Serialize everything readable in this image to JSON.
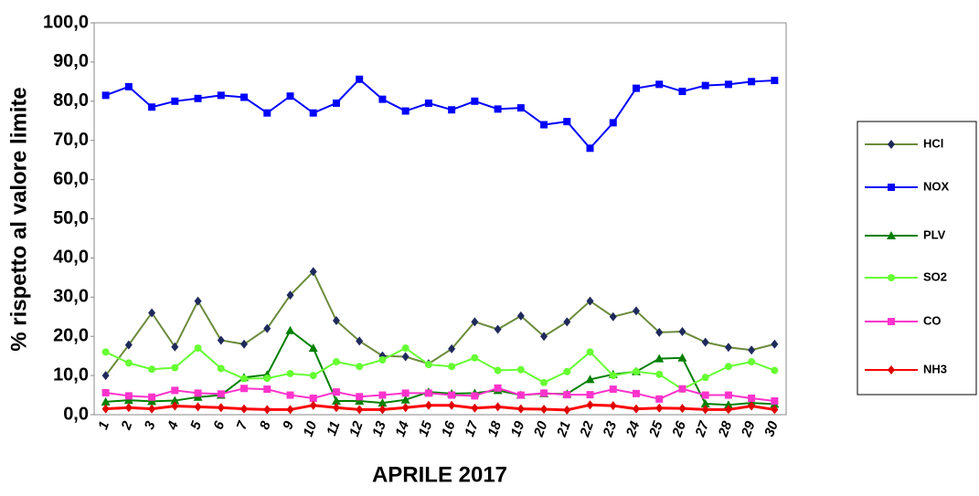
{
  "chart_data": {
    "type": "line",
    "y_label": "% rispetto al valore limite",
    "x_label": "APRILE 2017",
    "categories": [
      "1",
      "2",
      "3",
      "4",
      "5",
      "6",
      "7",
      "8",
      "9",
      "10",
      "11",
      "12",
      "13",
      "14",
      "15",
      "16",
      "17",
      "18",
      "19",
      "20",
      "21",
      "22",
      "23",
      "24",
      "25",
      "26",
      "27",
      "28",
      "29",
      "30"
    ],
    "ylim": [
      0,
      100
    ],
    "yticks": [
      {
        "value": 0,
        "label": "0,0"
      },
      {
        "value": 10,
        "label": "10,0"
      },
      {
        "value": 20,
        "label": "20,0"
      },
      {
        "value": 30,
        "label": "30,0"
      },
      {
        "value": 40,
        "label": "40,0"
      },
      {
        "value": 50,
        "label": "50,0"
      },
      {
        "value": 60,
        "label": "60,0"
      },
      {
        "value": 70,
        "label": "70,0"
      },
      {
        "value": 80,
        "label": "80,0"
      },
      {
        "value": 90,
        "label": "90,0"
      },
      {
        "value": 100,
        "label": "100,0"
      }
    ],
    "grid": false,
    "legend": "right",
    "series": [
      {
        "name": "HCl",
        "color": "#6b8b3c",
        "marker": "diamond",
        "marker_color": "#1f2a5c",
        "values": [
          10,
          17.8,
          26,
          17.3,
          29,
          19,
          18,
          22,
          30.5,
          36.5,
          24,
          18.8,
          15,
          14.8,
          13,
          16.8,
          23.7,
          21.8,
          25.2,
          20,
          23.7,
          29,
          25,
          26.5,
          21,
          21.2,
          18.5,
          17.2,
          16.5,
          18
        ]
      },
      {
        "name": "NOX",
        "color": "#0000ff",
        "marker": "square",
        "marker_color": "#0000ff",
        "values": [
          81.5,
          83.7,
          78.5,
          80,
          80.7,
          81.5,
          81,
          77,
          81.3,
          77,
          79.5,
          85.6,
          80.5,
          77.5,
          79.5,
          77.8,
          80,
          78,
          78.3,
          74,
          74.8,
          68,
          74.5,
          83.3,
          84.3,
          82.5,
          84,
          84.3,
          85,
          85.3
        ]
      },
      {
        "name": "PLV",
        "color": "#008000",
        "marker": "triangle",
        "marker_color": "#008000",
        "values": [
          3.3,
          3.7,
          3.4,
          3.6,
          4.5,
          5,
          9.5,
          10.2,
          21.5,
          17,
          3.5,
          3.5,
          3,
          3.8,
          5.8,
          5.4,
          5.5,
          6.2,
          5,
          5.4,
          5.3,
          9,
          10.3,
          11,
          14.3,
          14.5,
          2.8,
          2.5,
          3,
          2.7
        ]
      },
      {
        "name": "SO2",
        "color": "#66ff33",
        "marker": "circle",
        "marker_color": "#66ff33",
        "values": [
          16,
          13.2,
          11.6,
          12,
          17,
          11.8,
          9.2,
          9.3,
          10.5,
          10,
          13.5,
          12.3,
          14,
          17,
          12.8,
          12.3,
          14.5,
          11.3,
          11.5,
          8.2,
          11,
          16,
          10,
          11,
          10.3,
          6.5,
          9.5,
          12.3,
          13.5,
          11.3
        ]
      },
      {
        "name": "CO",
        "color": "#ff33cc",
        "marker": "square",
        "marker_color": "#ff33cc",
        "values": [
          5.6,
          4.8,
          4.5,
          6.2,
          5.5,
          5.3,
          6.7,
          6.5,
          5,
          4.2,
          5.8,
          4.6,
          5,
          5.5,
          5.5,
          5,
          4.8,
          6.8,
          5,
          5.5,
          5.1,
          5.1,
          6.5,
          5.4,
          4,
          6.6,
          5,
          5,
          4.2,
          3.5
        ]
      },
      {
        "name": "NH3",
        "color": "#ff0000",
        "marker": "diamond",
        "marker_color": "#e00000",
        "values": [
          1.5,
          1.8,
          1.5,
          2.2,
          2,
          1.8,
          1.5,
          1.3,
          1.3,
          2.4,
          1.8,
          1.3,
          1.3,
          1.8,
          2.4,
          2.4,
          1.7,
          2,
          1.5,
          1.4,
          1.2,
          2.5,
          2.3,
          1.5,
          1.7,
          1.6,
          1.3,
          1.3,
          2.2,
          1.3
        ]
      }
    ]
  }
}
